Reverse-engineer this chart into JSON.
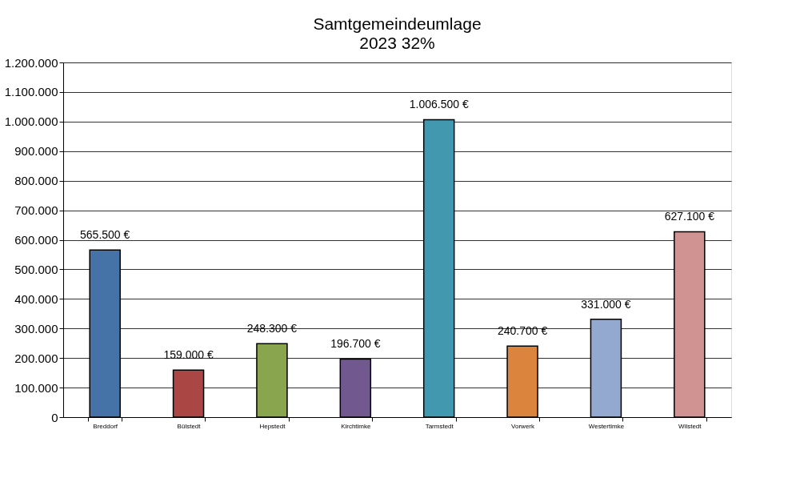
{
  "chart_data": {
    "type": "bar",
    "title": "Samtgemeindeumlage",
    "subtitle": "2023 32%",
    "categories": [
      "Breddorf",
      "Bülstedt",
      "Hepstedt",
      "Kirchtimke",
      "Tarmstedt",
      "Vorwerk",
      "Westertimke",
      "Wilstedt"
    ],
    "values": [
      565500,
      159000,
      248300,
      196700,
      1006500,
      240700,
      331000,
      627100
    ],
    "colors": [
      "#4572a7",
      "#aa4643",
      "#89a54e",
      "#71588f",
      "#4198af",
      "#db843d",
      "#93a9cf",
      "#d19392"
    ],
    "value_labels": [
      "565.500 €",
      "159.000 €",
      "248.300 €",
      "196.700 €",
      "1.006.500 €",
      "240.700 €",
      "331.000 €",
      "627.100 €"
    ],
    "ylim": [
      0,
      1200000
    ],
    "yticks": [
      {
        "value": 0,
        "label": "0"
      },
      {
        "value": 100000,
        "label": "100.000"
      },
      {
        "value": 200000,
        "label": "200.000"
      },
      {
        "value": 300000,
        "label": "300.000"
      },
      {
        "value": 400000,
        "label": "400.000"
      },
      {
        "value": 500000,
        "label": "500.000"
      },
      {
        "value": 600000,
        "label": "600.000"
      },
      {
        "value": 700000,
        "label": "700.000"
      },
      {
        "value": 800000,
        "label": "800.000"
      },
      {
        "value": 900000,
        "label": "900.000"
      },
      {
        "value": 1000000,
        "label": "1.000.000"
      },
      {
        "value": 1100000,
        "label": "1.100.000"
      },
      {
        "value": 1200000,
        "label": "1.200.000"
      }
    ],
    "grid": "y"
  }
}
